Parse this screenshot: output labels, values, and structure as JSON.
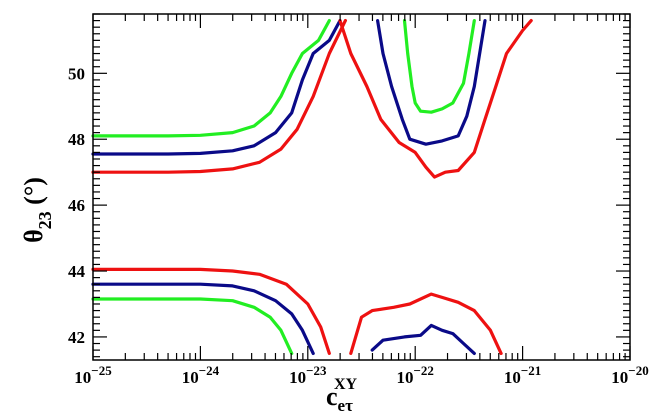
{
  "chart_data": {
    "type": "line",
    "title": "",
    "xscale": "log",
    "xlim": [
      1e-25,
      1e-20
    ],
    "ylim": [
      41.3,
      51.8
    ],
    "x_ticks": [
      {
        "value": 1e-25,
        "base": "10",
        "exp": "−25"
      },
      {
        "value": 1e-24,
        "base": "10",
        "exp": "−24"
      },
      {
        "value": 1e-23,
        "base": "10",
        "exp": "−23"
      },
      {
        "value": 1e-22,
        "base": "10",
        "exp": "−22"
      },
      {
        "value": 1e-21,
        "base": "10",
        "exp": "−21"
      },
      {
        "value": 1e-20,
        "base": "10",
        "exp": "−20"
      }
    ],
    "y_ticks": [
      "42",
      "44",
      "46",
      "48",
      "50"
    ],
    "ylabel": {
      "main": "θ",
      "sub": "23",
      "unit": " (°)"
    },
    "xlabel": {
      "main": "c",
      "sub": "eτ",
      "sup": "XY"
    },
    "grid": false,
    "legend": "none",
    "series": [
      {
        "name": "green",
        "color": "#22ee22",
        "segments": [
          [
            [
              -25,
              48.1
            ],
            [
              -24.3,
              48.1
            ],
            [
              -24,
              48.12
            ],
            [
              -23.7,
              48.2
            ],
            [
              -23.5,
              48.4
            ],
            [
              -23.35,
              48.8
            ],
            [
              -23.25,
              49.3
            ],
            [
              -23.15,
              50.0
            ],
            [
              -23.05,
              50.6
            ],
            [
              -22.9,
              51.0
            ],
            [
              -22.8,
              51.6
            ]
          ],
          [
            [
              -22.1,
              51.6
            ],
            [
              -22.07,
              50.6
            ],
            [
              -22.03,
              49.6
            ],
            [
              -22.0,
              49.1
            ],
            [
              -21.95,
              48.85
            ],
            [
              -21.85,
              48.82
            ],
            [
              -21.75,
              48.92
            ],
            [
              -21.65,
              49.1
            ],
            [
              -21.55,
              49.7
            ],
            [
              -21.5,
              50.6
            ],
            [
              -21.45,
              51.6
            ]
          ],
          [
            [
              -25,
              43.15
            ],
            [
              -24,
              43.15
            ],
            [
              -23.7,
              43.1
            ],
            [
              -23.5,
              42.9
            ],
            [
              -23.35,
              42.6
            ],
            [
              -23.25,
              42.2
            ],
            [
              -23.15,
              41.5
            ]
          ]
        ]
      },
      {
        "name": "blue",
        "color": "#0a0a88",
        "segments": [
          [
            [
              -25,
              47.55
            ],
            [
              -24.3,
              47.55
            ],
            [
              -24,
              47.57
            ],
            [
              -23.7,
              47.65
            ],
            [
              -23.5,
              47.8
            ],
            [
              -23.3,
              48.2
            ],
            [
              -23.15,
              48.8
            ],
            [
              -23.05,
              49.8
            ],
            [
              -22.95,
              50.6
            ],
            [
              -22.8,
              51.0
            ],
            [
              -22.7,
              51.6
            ]
          ],
          [
            [
              -22.35,
              51.6
            ],
            [
              -22.3,
              50.6
            ],
            [
              -22.22,
              49.6
            ],
            [
              -22.12,
              48.6
            ],
            [
              -22.05,
              48.0
            ],
            [
              -21.9,
              47.85
            ],
            [
              -21.75,
              47.95
            ],
            [
              -21.6,
              48.1
            ],
            [
              -21.52,
              48.7
            ],
            [
              -21.45,
              49.6
            ],
            [
              -21.35,
              51.6
            ]
          ],
          [
            [
              -25,
              43.6
            ],
            [
              -24,
              43.6
            ],
            [
              -23.7,
              43.55
            ],
            [
              -23.5,
              43.4
            ],
            [
              -23.3,
              43.1
            ],
            [
              -23.15,
              42.7
            ],
            [
              -23.05,
              42.2
            ],
            [
              -22.95,
              41.5
            ]
          ],
          [
            [
              -22.4,
              41.6
            ],
            [
              -22.3,
              41.9
            ],
            [
              -22.1,
              42.0
            ],
            [
              -21.95,
              42.05
            ],
            [
              -21.85,
              42.35
            ],
            [
              -21.75,
              42.2
            ],
            [
              -21.65,
              42.1
            ],
            [
              -21.55,
              41.8
            ],
            [
              -21.45,
              41.5
            ]
          ]
        ]
      },
      {
        "name": "red",
        "color": "#ee1111",
        "segments": [
          [
            [
              -25,
              47.0
            ],
            [
              -24.3,
              47.0
            ],
            [
              -24,
              47.02
            ],
            [
              -23.7,
              47.1
            ],
            [
              -23.45,
              47.3
            ],
            [
              -23.25,
              47.7
            ],
            [
              -23.1,
              48.3
            ],
            [
              -22.95,
              49.3
            ],
            [
              -22.8,
              50.6
            ],
            [
              -22.65,
              51.6
            ]
          ],
          [
            [
              -22.7,
              51.6
            ],
            [
              -22.6,
              50.6
            ],
            [
              -22.45,
              49.6
            ],
            [
              -22.32,
              48.6
            ],
            [
              -22.15,
              47.9
            ],
            [
              -22.0,
              47.6
            ],
            [
              -21.9,
              47.15
            ],
            [
              -21.82,
              46.85
            ],
            [
              -21.72,
              47.0
            ],
            [
              -21.6,
              47.05
            ],
            [
              -21.45,
              47.6
            ],
            [
              -21.35,
              48.6
            ],
            [
              -21.25,
              49.6
            ],
            [
              -21.15,
              50.6
            ],
            [
              -21.0,
              51.3
            ],
            [
              -20.92,
              51.6
            ]
          ],
          [
            [
              -25,
              44.05
            ],
            [
              -24,
              44.05
            ],
            [
              -23.7,
              44.0
            ],
            [
              -23.45,
              43.9
            ],
            [
              -23.2,
              43.6
            ],
            [
              -23.0,
              43.0
            ],
            [
              -22.88,
              42.3
            ],
            [
              -22.8,
              41.5
            ]
          ],
          [
            [
              -22.6,
              41.5
            ],
            [
              -22.5,
              42.6
            ],
            [
              -22.4,
              42.8
            ],
            [
              -22.2,
              42.9
            ],
            [
              -22.05,
              43.0
            ],
            [
              -21.85,
              43.3
            ],
            [
              -21.75,
              43.2
            ],
            [
              -21.6,
              43.05
            ],
            [
              -21.45,
              42.8
            ],
            [
              -21.3,
              42.2
            ],
            [
              -21.2,
              41.5
            ]
          ]
        ]
      }
    ]
  }
}
